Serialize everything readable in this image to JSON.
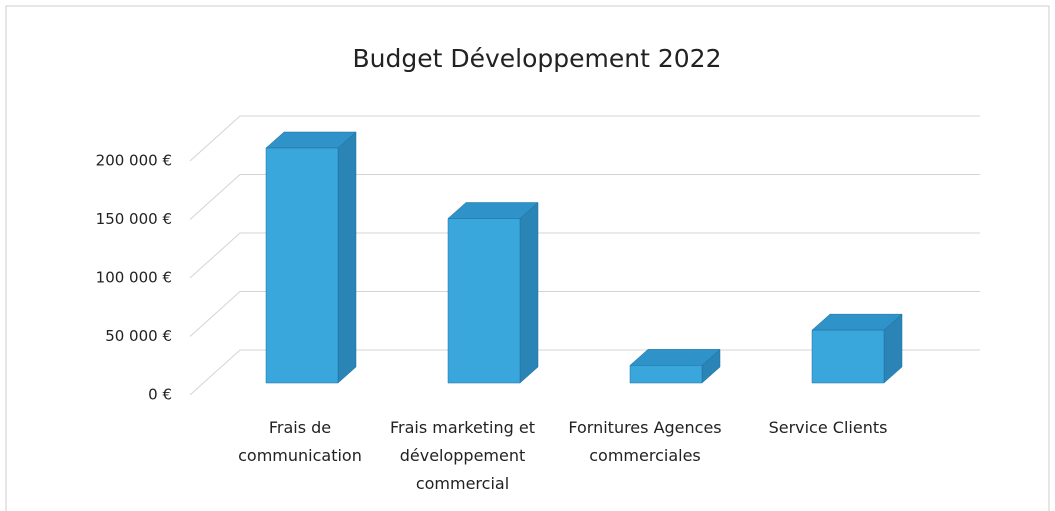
{
  "chart_data": {
    "type": "bar3d",
    "title": "Budget Développement 2022",
    "categories": [
      "Frais de communication",
      "Frais marketing et développement commercial",
      "Fornitures Agences commerciales",
      "Service Clients"
    ],
    "values": [
      200000,
      140000,
      15000,
      45000
    ],
    "color": "#3aa7dc",
    "ylim": [
      0,
      200000
    ],
    "yticks": [
      {
        "value": 0,
        "label": "0 €"
      },
      {
        "value": 50000,
        "label": "50 000 €"
      },
      {
        "value": 100000,
        "label": "100 000 €"
      },
      {
        "value": 150000,
        "label": "150 000 €"
      },
      {
        "value": 200000,
        "label": "200 000 €"
      }
    ],
    "grid": true
  }
}
